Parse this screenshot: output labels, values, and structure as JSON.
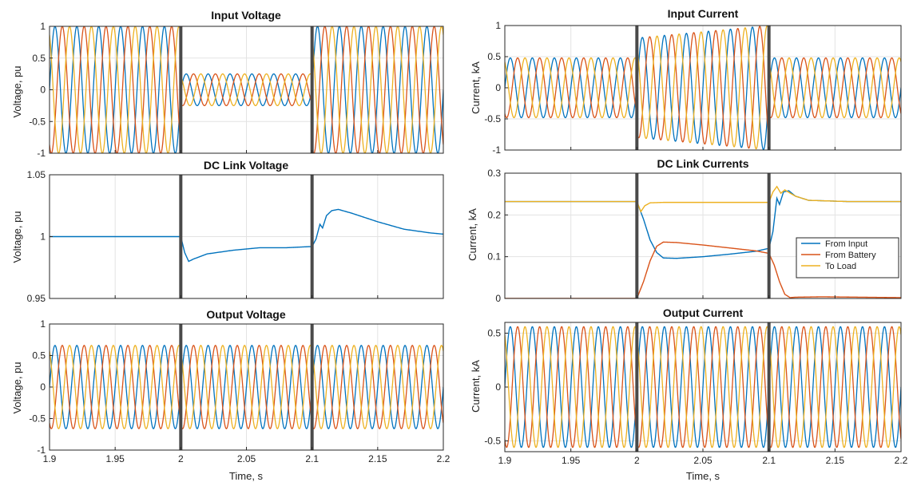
{
  "figure": {
    "xlim": [
      1.9,
      2.2
    ],
    "xticks": [
      "1.9",
      "1.95",
      "2",
      "2.05",
      "2.1",
      "2.15",
      "2.2"
    ],
    "event_lines_x": [
      2.0,
      2.1
    ],
    "colors": {
      "phase_a": "#0072BD",
      "phase_b": "#D95319",
      "phase_c": "#EDB120",
      "event_line": "#4a4a4a",
      "grid": "#e3e3e3"
    }
  },
  "chart_data": [
    {
      "type": "line",
      "title": "Input Voltage",
      "ylabel": "Voltage, pu",
      "xlabel": "",
      "xlim": [
        1.9,
        2.2
      ],
      "ylim": [
        -1,
        1
      ],
      "yticks": [
        "-1",
        "-0.5",
        "0",
        "0.5",
        "1"
      ],
      "grid": true,
      "signal": "three_phase",
      "frequency_hz": 60,
      "segments": [
        {
          "x": [
            1.9,
            2.0
          ],
          "amplitude": 1.0
        },
        {
          "x": [
            2.0,
            2.1
          ],
          "amplitude": 0.25
        },
        {
          "x": [
            2.1,
            2.2
          ],
          "amplitude": 1.0
        }
      ],
      "series": [
        {
          "values_desc": "phase A"
        },
        {
          "values_desc": "phase B"
        },
        {
          "values_desc": "phase C"
        }
      ]
    },
    {
      "type": "line",
      "title": "DC Link Voltage",
      "ylabel": "Voltage, pu",
      "xlabel": "",
      "xlim": [
        1.9,
        2.2
      ],
      "ylim": [
        0.95,
        1.05
      ],
      "yticks": [
        "0.95",
        "1",
        "1.05"
      ],
      "grid": true,
      "signal": "dc",
      "series": [
        {
          "x": [
            1.9,
            2.0,
            2.003,
            2.006,
            2.01,
            2.02,
            2.04,
            2.06,
            2.08,
            2.1,
            2.103,
            2.106,
            2.108,
            2.111,
            2.115,
            2.12,
            2.13,
            2.15,
            2.17,
            2.19,
            2.2
          ],
          "values": [
            1.0,
            1.0,
            0.987,
            0.98,
            0.982,
            0.986,
            0.989,
            0.991,
            0.991,
            0.992,
            0.998,
            1.01,
            1.007,
            1.017,
            1.021,
            1.022,
            1.019,
            1.012,
            1.006,
            1.003,
            1.002
          ]
        }
      ]
    },
    {
      "type": "line",
      "title": "Output Voltage",
      "ylabel": "Voltage, pu",
      "xlabel": "Time, s",
      "xlim": [
        1.9,
        2.2
      ],
      "ylim": [
        -1,
        1
      ],
      "yticks": [
        "-1",
        "-0.5",
        "0",
        "0.5",
        "1"
      ],
      "grid": true,
      "signal": "three_phase",
      "frequency_hz": 60,
      "segments": [
        {
          "x": [
            1.9,
            2.2
          ],
          "amplitude": 0.66
        }
      ],
      "series": [
        {
          "values_desc": "phase A"
        },
        {
          "values_desc": "phase B"
        },
        {
          "values_desc": "phase C"
        }
      ]
    },
    {
      "type": "line",
      "title": "Input Current",
      "ylabel": "Current, kA",
      "xlabel": "",
      "xlim": [
        1.9,
        2.2
      ],
      "ylim": [
        -1,
        1
      ],
      "yticks": [
        "-1",
        "-0.5",
        "0",
        "0.5",
        "1"
      ],
      "grid": true,
      "signal": "three_phase",
      "frequency_hz": 60,
      "segments": [
        {
          "x": [
            1.9,
            2.0
          ],
          "amplitude": 0.48
        },
        {
          "x": [
            2.0,
            2.1
          ],
          "amplitude": [
            0.8,
            1.0
          ]
        },
        {
          "x": [
            2.1,
            2.2
          ],
          "amplitude": 0.48
        }
      ],
      "series": [
        {
          "values_desc": "phase A"
        },
        {
          "values_desc": "phase B"
        },
        {
          "values_desc": "phase C"
        }
      ]
    },
    {
      "type": "line",
      "title": "DC Link Currents",
      "ylabel": "Current, kA",
      "xlabel": "",
      "xlim": [
        1.9,
        2.2
      ],
      "ylim": [
        0,
        0.3
      ],
      "yticks": [
        "0",
        "0.1",
        "0.2",
        "0.3"
      ],
      "grid": true,
      "signal": "dc",
      "legend": {
        "position": "bottom-right"
      },
      "series": [
        {
          "name": "From Input",
          "x": [
            1.9,
            2.0,
            2.005,
            2.01,
            2.015,
            2.02,
            2.03,
            2.05,
            2.07,
            2.09,
            2.1,
            2.103,
            2.106,
            2.108,
            2.111,
            2.115,
            2.12,
            2.13,
            2.16,
            2.2
          ],
          "values": [
            0.232,
            0.232,
            0.19,
            0.14,
            0.11,
            0.097,
            0.096,
            0.1,
            0.106,
            0.113,
            0.12,
            0.16,
            0.24,
            0.225,
            0.255,
            0.258,
            0.245,
            0.235,
            0.232,
            0.232
          ]
        },
        {
          "name": "From Battery",
          "x": [
            1.9,
            2.0,
            2.005,
            2.01,
            2.015,
            2.02,
            2.03,
            2.05,
            2.07,
            2.09,
            2.1,
            2.104,
            2.108,
            2.112,
            2.116,
            2.12,
            2.14,
            2.17,
            2.2
          ],
          "values": [
            0.0,
            0.0,
            0.04,
            0.09,
            0.125,
            0.135,
            0.134,
            0.128,
            0.121,
            0.114,
            0.108,
            0.08,
            0.04,
            0.01,
            0.002,
            0.003,
            0.004,
            0.003,
            0.002
          ]
        },
        {
          "name": "To Load",
          "x": [
            1.9,
            2.0,
            2.003,
            2.006,
            2.01,
            2.02,
            2.05,
            2.09,
            2.1,
            2.103,
            2.106,
            2.109,
            2.112,
            2.115,
            2.12,
            2.13,
            2.16,
            2.2
          ],
          "values": [
            0.232,
            0.232,
            0.208,
            0.222,
            0.229,
            0.23,
            0.23,
            0.23,
            0.23,
            0.255,
            0.268,
            0.252,
            0.26,
            0.254,
            0.245,
            0.235,
            0.232,
            0.232
          ]
        }
      ]
    },
    {
      "type": "line",
      "title": "Output Current",
      "ylabel": "Current, kA",
      "xlabel": "Time, s",
      "xlim": [
        1.9,
        2.2
      ],
      "ylim": [
        -0.6,
        0.6
      ],
      "yticks": [
        "-0.5",
        "0",
        "0.5"
      ],
      "grid": true,
      "signal": "three_phase",
      "frequency_hz": 60,
      "segments": [
        {
          "x": [
            1.9,
            2.2
          ],
          "amplitude": 0.56
        }
      ],
      "series": [
        {
          "values_desc": "phase A"
        },
        {
          "values_desc": "phase B"
        },
        {
          "values_desc": "phase C"
        }
      ]
    }
  ]
}
